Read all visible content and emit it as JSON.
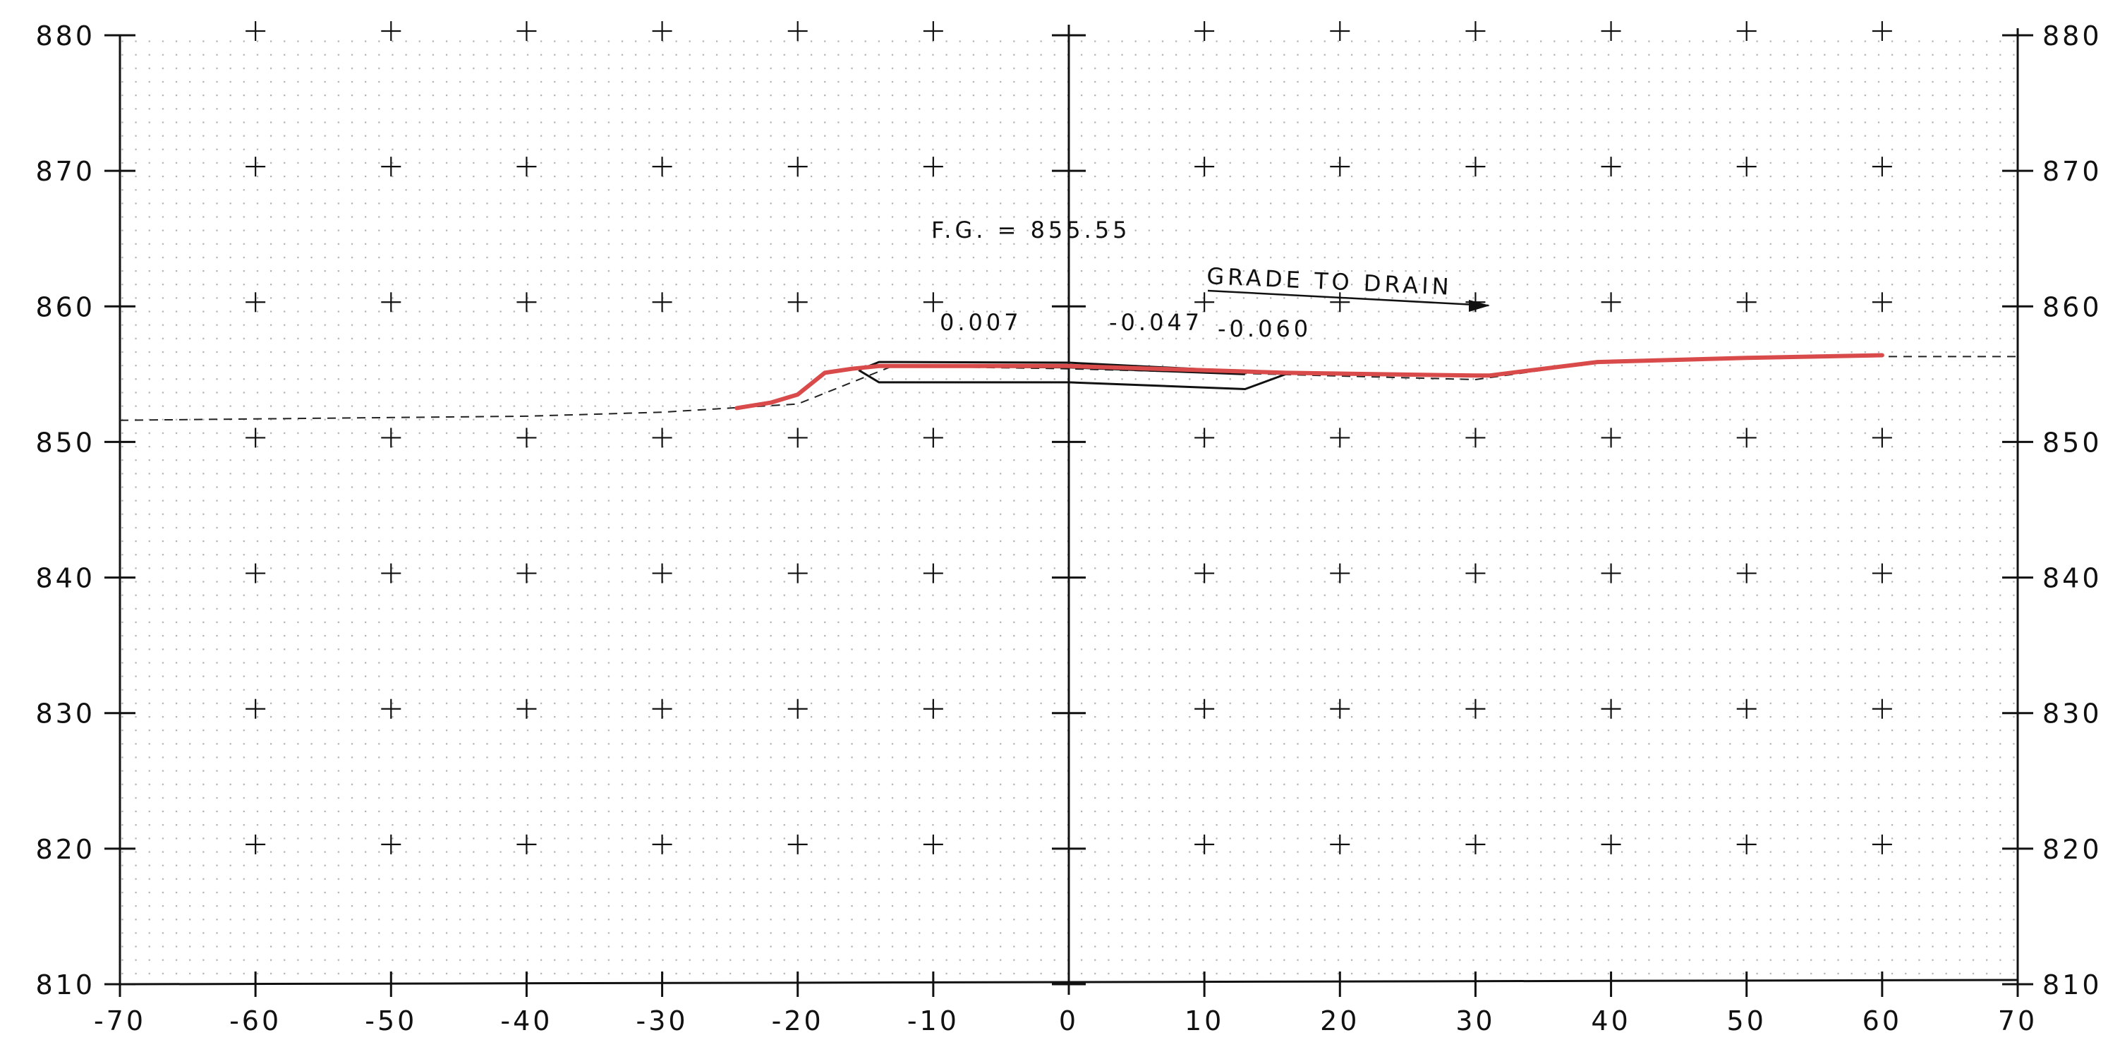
{
  "sheet": {
    "x_axis": {
      "min": -70,
      "max": 70,
      "step": 10,
      "tick_labels": [
        "-70",
        "-60",
        "-50",
        "-40",
        "-30",
        "-20",
        "-10",
        "0",
        "10",
        "20",
        "30",
        "40",
        "50",
        "60",
        "70"
      ]
    },
    "y_axis": {
      "min": 810,
      "max": 880,
      "step": 10,
      "tick_labels": [
        "810",
        "820",
        "830",
        "840",
        "850",
        "860",
        "870",
        "880"
      ]
    },
    "colors": {
      "proposed_grade": "#d94a4a",
      "linework": "#111111",
      "existing_ground": "#222222",
      "grid_dots": "#b0b0b0"
    }
  },
  "annotations": {
    "finished_grade": "F.G. = 855.55",
    "grade_to_drain": "GRADE TO DRAIN",
    "slope_left": "0.007",
    "slope_right": "-0.047",
    "slope_far": "-0.060"
  },
  "chart_data": {
    "type": "line",
    "title": "",
    "xlabel": "",
    "ylabel": "",
    "xlim": [
      -70,
      70
    ],
    "ylim": [
      810,
      880
    ],
    "grid": "dot grid with + markers every 10 units",
    "series": [
      {
        "style": "dashed",
        "points": [
          [
            -70,
            851.6
          ],
          [
            -50,
            851.8
          ],
          [
            -40,
            851.9
          ],
          [
            -30,
            852.2
          ],
          [
            -25,
            852.5
          ],
          [
            -20,
            852.8
          ],
          [
            -15,
            854.8
          ],
          [
            -13,
            855.6
          ],
          [
            0,
            855.4
          ],
          [
            15,
            855.0
          ],
          [
            30,
            854.6
          ],
          [
            40,
            856.0
          ],
          [
            50,
            856.2
          ],
          [
            60,
            856.3
          ],
          [
            70,
            856.3
          ]
        ]
      },
      {
        "style": "thin",
        "points": [
          [
            -15.5,
            855.3
          ],
          [
            -14,
            855.9
          ],
          [
            0,
            855.85
          ],
          [
            13,
            855.2
          ],
          [
            16,
            855.0
          ]
        ]
      },
      {
        "style": "thin",
        "points": [
          [
            -14,
            855.6
          ],
          [
            0,
            855.5
          ],
          [
            13,
            855.0
          ]
        ]
      },
      {
        "style": "thin",
        "points": [
          [
            -15.5,
            855.3
          ],
          [
            -14,
            854.4
          ],
          [
            0,
            854.4
          ],
          [
            13,
            853.9
          ],
          [
            16,
            855.0
          ]
        ]
      },
      {
        "style": "thick-red",
        "points": [
          [
            -24.5,
            852.5
          ],
          [
            -22,
            852.9
          ],
          [
            -20,
            853.5
          ],
          [
            -18,
            855.1
          ],
          [
            -16,
            855.4
          ],
          [
            -14,
            855.6
          ],
          [
            0,
            855.6
          ],
          [
            16,
            855.1
          ],
          [
            30,
            854.9
          ],
          [
            31,
            854.9
          ],
          [
            39,
            855.9
          ],
          [
            50,
            856.2
          ],
          [
            60,
            856.4
          ]
        ]
      }
    ]
  }
}
